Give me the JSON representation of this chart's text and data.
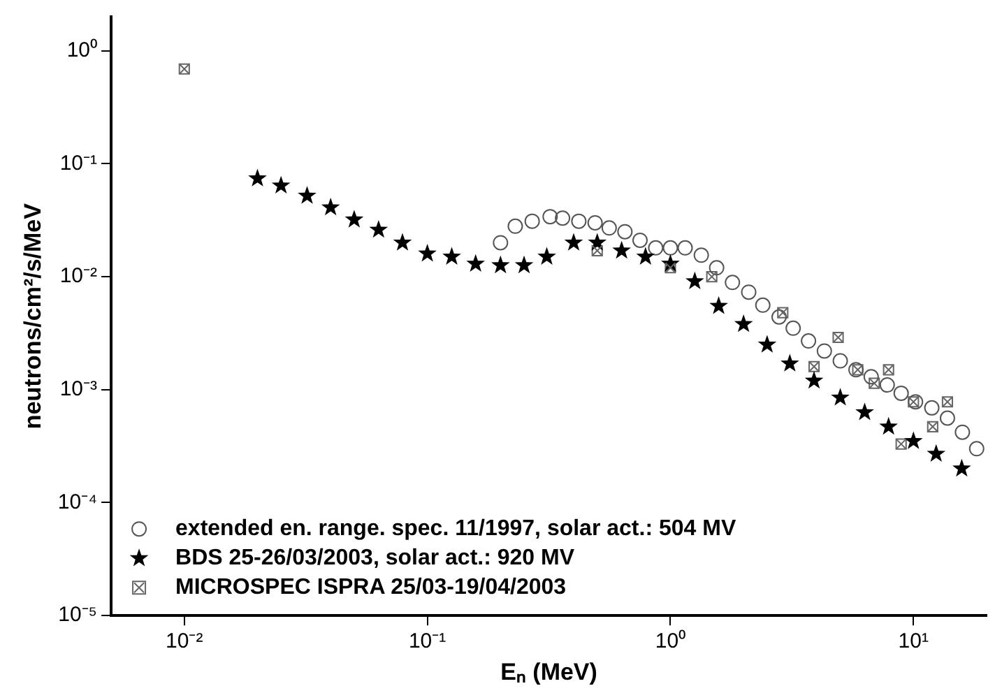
{
  "chart_data": {
    "type": "scatter",
    "xlabel": "Eₙ (MeV)",
    "ylabel": "neutrons/cm²/s/MeV",
    "log": "xy",
    "grid": false,
    "legend": "bottom left",
    "xlim": [
      0.005,
      20
    ],
    "ylim": [
      1e-05,
      2
    ],
    "xticks": [
      {
        "value": 0.01,
        "label": "10⁻²"
      },
      {
        "value": 0.1,
        "label": "10⁻¹"
      },
      {
        "value": 1,
        "label": "10⁰"
      },
      {
        "value": 10,
        "label": "10¹"
      }
    ],
    "yticks": [
      {
        "value": 1e-05,
        "label": "10⁻⁵"
      },
      {
        "value": 0.0001,
        "label": "10⁻⁴"
      },
      {
        "value": 0.001,
        "label": "10⁻³"
      },
      {
        "value": 0.01,
        "label": "10⁻²"
      },
      {
        "value": 0.1,
        "label": "10⁻¹"
      },
      {
        "value": 1,
        "label": "10⁰"
      }
    ],
    "series": [
      {
        "name": "extended en. range. spec. 11/1997, solar act.: 504 MV",
        "color": "#555555",
        "marker": "circle",
        "x": [
          0.2,
          0.23,
          0.27,
          0.32,
          0.36,
          0.42,
          0.49,
          0.56,
          0.65,
          0.75,
          0.87,
          1.0,
          1.15,
          1.34,
          1.55,
          1.8,
          2.1,
          2.4,
          2.8,
          3.2,
          3.7,
          4.3,
          5.0,
          5.8,
          6.7,
          7.8,
          8.9,
          10.2,
          11.9,
          13.8,
          15.9,
          18.2
        ],
        "values": [
          0.02,
          0.028,
          0.031,
          0.034,
          0.033,
          0.031,
          0.03,
          0.027,
          0.025,
          0.021,
          0.018,
          0.018,
          0.018,
          0.0155,
          0.012,
          0.0089,
          0.0073,
          0.0056,
          0.0044,
          0.0035,
          0.0027,
          0.0022,
          0.0018,
          0.0015,
          0.0013,
          0.0011,
          0.00093,
          0.00078,
          0.00069,
          0.00056,
          0.00042,
          0.0003
        ]
      },
      {
        "name": "BDS 25-26/03/2003, solar act.: 920 MV",
        "color": "#000000",
        "marker": "star",
        "x": [
          0.02,
          0.025,
          0.032,
          0.04,
          0.05,
          0.063,
          0.079,
          0.1,
          0.126,
          0.158,
          0.2,
          0.25,
          0.31,
          0.4,
          0.5,
          0.63,
          0.79,
          1.0,
          1.26,
          1.58,
          2.0,
          2.5,
          3.1,
          3.9,
          5.0,
          6.3,
          7.9,
          10,
          12.4,
          15.8
        ],
        "values": [
          0.074,
          0.064,
          0.052,
          0.041,
          0.032,
          0.026,
          0.02,
          0.016,
          0.015,
          0.013,
          0.0126,
          0.0126,
          0.015,
          0.02,
          0.02,
          0.017,
          0.015,
          0.013,
          0.0091,
          0.0055,
          0.0038,
          0.0025,
          0.0017,
          0.0012,
          0.00085,
          0.00063,
          0.00047,
          0.00035,
          0.00027,
          0.0002
        ]
      },
      {
        "name": "MICROSPEC ISPRA 25/03-19/04/2003",
        "color": "#666666",
        "marker": "square",
        "x": [
          0.01,
          0.5,
          1.0,
          1.48,
          2.9,
          3.9,
          4.9,
          5.9,
          6.9,
          7.9,
          8.9,
          10,
          12,
          13.8
        ],
        "values": [
          0.69,
          0.017,
          0.012,
          0.01,
          0.0048,
          0.0016,
          0.0029,
          0.0015,
          0.00114,
          0.0015,
          0.00033,
          0.00078,
          0.00047,
          0.00078
        ]
      }
    ]
  }
}
